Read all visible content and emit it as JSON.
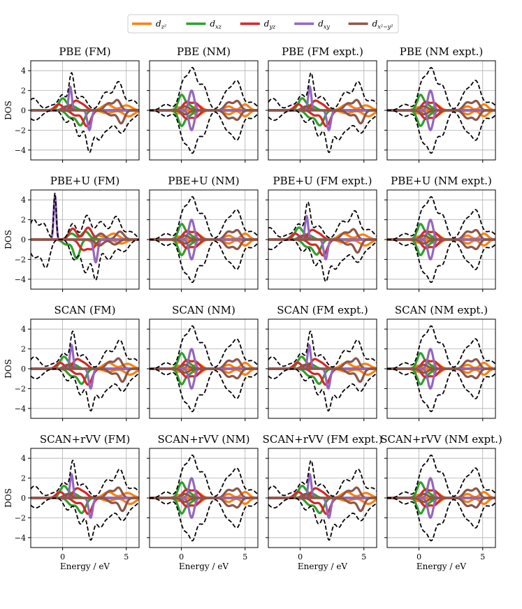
{
  "chart_data": {
    "type": "line",
    "grid": true,
    "layout": "4x4 panel grid",
    "x_range": [
      -2.5,
      6
    ],
    "y_range": [
      -5,
      5
    ],
    "xticks": [
      0,
      5
    ],
    "yticks": [
      -4,
      -2,
      0,
      2,
      4
    ],
    "xlabel": "Energy / eV",
    "ylabel": "DOS",
    "legend": {
      "placement": "top-center",
      "entries": [
        {
          "base": "d",
          "sub": "z²",
          "sub_sup": "",
          "label": "d_{z^2}",
          "color": "#ff7f0e"
        },
        {
          "base": "d",
          "sub": "xz",
          "sub_sup": "",
          "label": "d_{xz}",
          "color": "#2ca02c"
        },
        {
          "base": "d",
          "sub": "yz",
          "sub_sup": "",
          "label": "d_{yz}",
          "color": "#d62728"
        },
        {
          "base": "d",
          "sub": "xy",
          "sub_sup": "",
          "label": "d_{xy}",
          "color": "#9467bd"
        },
        {
          "base": "d",
          "sub": "x²−y²",
          "sub_sup": "",
          "label": "d_{x^2-y^2}",
          "color": "#8c564b"
        }
      ],
      "total_color": "#000000"
    },
    "panels": [
      {
        "title": "PBE (FM)",
        "mag": "FM",
        "shift": 0.0
      },
      {
        "title": "PBE (NM)",
        "mag": "NM",
        "shift": 0.0
      },
      {
        "title": "PBE (FM expt.)",
        "mag": "FM",
        "shift": 0.15
      },
      {
        "title": "PBE (NM expt.)",
        "mag": "NM",
        "shift": 0.1
      },
      {
        "title": "PBE+U (FM)",
        "mag": "FMU",
        "shift": 0.0
      },
      {
        "title": "PBE+U (NM)",
        "mag": "NM",
        "shift": 0.0
      },
      {
        "title": "PBE+U (FM expt.)",
        "mag": "FM",
        "shift": -0.1
      },
      {
        "title": "PBE+U (NM expt.)",
        "mag": "NM",
        "shift": 0.1
      },
      {
        "title": "SCAN (FM)",
        "mag": "FM",
        "shift": 0.1
      },
      {
        "title": "SCAN (NM)",
        "mag": "NM",
        "shift": 0.0
      },
      {
        "title": "SCAN (FM expt.)",
        "mag": "FM",
        "shift": 0.1
      },
      {
        "title": "SCAN (NM expt.)",
        "mag": "NM",
        "shift": 0.1
      },
      {
        "title": "SCAN+rVV (FM)",
        "mag": "FM",
        "shift": 0.1
      },
      {
        "title": "SCAN+rVV (NM)",
        "mag": "NM",
        "shift": 0.0
      },
      {
        "title": "SCAN+rVV (FM expt.)",
        "mag": "FM",
        "shift": 0.15
      },
      {
        "title": "SCAN+rVV (NM expt.)",
        "mag": "NM",
        "shift": 0.1
      }
    ],
    "curve_models": {
      "FM": {
        "up": {
          "dz2": [
            [
              0.5,
              0.3,
              0.3
            ],
            [
              3.5,
              0.6,
              0.4
            ],
            [
              5.0,
              0.5,
              0.4
            ]
          ],
          "dxz": [
            [
              0.0,
              1.2,
              0.3
            ],
            [
              0.8,
              0.4,
              0.3
            ]
          ],
          "dyz": [
            [
              -0.3,
              0.6,
              0.3
            ],
            [
              1.0,
              0.9,
              0.3
            ],
            [
              1.6,
              0.5,
              0.3
            ]
          ],
          "dxy": [
            [
              0.6,
              2.4,
              0.12
            ]
          ],
          "dx2y2": [
            [
              0.3,
              0.4,
              0.3
            ],
            [
              3.6,
              0.7,
              0.3
            ],
            [
              4.3,
              1.0,
              0.25
            ]
          ],
          "total": [
            [
              -2.3,
              1.2,
              0.4
            ],
            [
              -0.8,
              0.5,
              0.4
            ],
            [
              0.0,
              1.5,
              0.3
            ],
            [
              0.7,
              3.5,
              0.2
            ],
            [
              1.5,
              1.4,
              0.4
            ],
            [
              3.4,
              1.8,
              0.4
            ],
            [
              4.4,
              2.8,
              0.35
            ],
            [
              5.5,
              1.0,
              0.4
            ]
          ]
        },
        "down": {
          "dz2": [
            [
              3.5,
              0.3,
              0.4
            ],
            [
              5.2,
              0.6,
              0.4
            ]
          ],
          "dxz": [
            [
              1.4,
              1.5,
              0.3
            ],
            [
              0.6,
              0.7,
              0.3
            ]
          ],
          "dyz": [
            [
              1.9,
              1.6,
              0.3
            ],
            [
              1.0,
              0.5,
              0.3
            ]
          ],
          "dxy": [
            [
              2.1,
              2.0,
              0.15
            ]
          ],
          "dx2y2": [
            [
              3.8,
              0.5,
              0.3
            ],
            [
              4.6,
              1.3,
              0.25
            ]
          ],
          "total": [
            [
              -2.2,
              1.0,
              0.5
            ],
            [
              0.3,
              1.2,
              0.3
            ],
            [
              1.3,
              2.6,
              0.3
            ],
            [
              2.1,
              4.0,
              0.25
            ],
            [
              2.8,
              2.5,
              0.3
            ],
            [
              3.5,
              1.8,
              0.4
            ],
            [
              4.6,
              2.2,
              0.4
            ],
            [
              5.5,
              0.7,
              0.4
            ]
          ]
        }
      },
      "FMU": {
        "up": {
          "dz2": [
            [
              2.8,
              0.4,
              0.3
            ],
            [
              4.0,
              0.6,
              0.4
            ]
          ],
          "dxz": [
            [
              0.7,
              0.6,
              0.3
            ],
            [
              1.8,
              0.8,
              0.3
            ]
          ],
          "dyz": [
            [
              0.8,
              1.1,
              0.3
            ],
            [
              2.0,
              1.2,
              0.3
            ]
          ],
          "dxy": [
            [
              -0.6,
              4.4,
              0.1
            ]
          ],
          "dx2y2": [
            [
              3.0,
              0.6,
              0.3
            ],
            [
              4.5,
              0.8,
              0.3
            ]
          ],
          "total": [
            [
              -2.3,
              2.0,
              0.3
            ],
            [
              -1.5,
              1.6,
              0.3
            ],
            [
              -0.6,
              4.7,
              0.1
            ],
            [
              0.8,
              1.6,
              0.3
            ],
            [
              1.9,
              2.4,
              0.3
            ],
            [
              3.0,
              1.8,
              0.4
            ],
            [
              4.2,
              2.3,
              0.35
            ],
            [
              5.3,
              0.8,
              0.4
            ]
          ]
        },
        "down": {
          "dz2": [
            [
              2.8,
              0.6,
              0.4
            ],
            [
              4.6,
              0.4,
              0.4
            ]
          ],
          "dxz": [
            [
              1.1,
              1.9,
              0.25
            ],
            [
              0.3,
              0.5,
              0.3
            ]
          ],
          "dyz": [
            [
              1.6,
              1.0,
              0.3
            ],
            [
              2.3,
              0.9,
              0.3
            ]
          ],
          "dxy": [
            [
              2.6,
              2.3,
              0.15
            ]
          ],
          "dx2y2": [
            [
              2.9,
              0.6,
              0.3
            ],
            [
              4.1,
              0.5,
              0.3
            ]
          ],
          "total": [
            [
              -2.2,
              1.8,
              0.4
            ],
            [
              -1.3,
              2.7,
              0.3
            ],
            [
              0.9,
              2.0,
              0.3
            ],
            [
              1.8,
              3.3,
              0.3
            ],
            [
              2.6,
              3.9,
              0.25
            ],
            [
              3.6,
              2.0,
              0.4
            ],
            [
              4.8,
              1.2,
              0.4
            ]
          ]
        }
      },
      "NM": {
        "up": {
          "dz2": [
            [
              -0.2,
              0.3,
              0.3
            ],
            [
              1.3,
              0.5,
              0.3
            ],
            [
              3.7,
              0.4,
              0.3
            ],
            [
              5.0,
              0.6,
              0.3
            ]
          ],
          "dxz": [
            [
              0.0,
              1.5,
              0.25
            ],
            [
              0.6,
              0.5,
              0.3
            ]
          ],
          "dyz": [
            [
              0.4,
              0.8,
              0.3
            ],
            [
              1.1,
              0.7,
              0.3
            ]
          ],
          "dxy": [
            [
              0.8,
              2.0,
              0.2
            ]
          ],
          "dx2y2": [
            [
              0.3,
              0.4,
              0.3
            ],
            [
              3.7,
              0.8,
              0.3
            ],
            [
              4.4,
              0.9,
              0.25
            ]
          ],
          "total": [
            [
              -1.2,
              0.6,
              0.4
            ],
            [
              0.2,
              3.0,
              0.35
            ],
            [
              0.9,
              3.7,
              0.3
            ],
            [
              1.7,
              2.5,
              0.35
            ],
            [
              3.6,
              1.9,
              0.4
            ],
            [
              4.4,
              2.7,
              0.35
            ],
            [
              5.5,
              0.8,
              0.4
            ]
          ]
        },
        "down": {
          "dz2": [
            [
              -0.2,
              0.3,
              0.3
            ],
            [
              1.3,
              0.5,
              0.3
            ],
            [
              3.7,
              0.4,
              0.3
            ],
            [
              5.0,
              0.6,
              0.3
            ]
          ],
          "dxz": [
            [
              0.0,
              1.5,
              0.25
            ],
            [
              0.6,
              0.5,
              0.3
            ]
          ],
          "dyz": [
            [
              0.4,
              0.8,
              0.3
            ],
            [
              1.1,
              0.7,
              0.3
            ]
          ],
          "dxy": [
            [
              0.8,
              2.0,
              0.2
            ]
          ],
          "dx2y2": [
            [
              0.3,
              0.4,
              0.3
            ],
            [
              3.7,
              0.8,
              0.3
            ],
            [
              4.4,
              0.9,
              0.25
            ]
          ],
          "total": [
            [
              -1.2,
              0.6,
              0.4
            ],
            [
              0.2,
              3.0,
              0.35
            ],
            [
              0.9,
              3.7,
              0.3
            ],
            [
              1.7,
              2.5,
              0.35
            ],
            [
              3.6,
              1.9,
              0.4
            ],
            [
              4.4,
              2.7,
              0.35
            ],
            [
              5.5,
              0.8,
              0.4
            ]
          ]
        }
      }
    }
  }
}
